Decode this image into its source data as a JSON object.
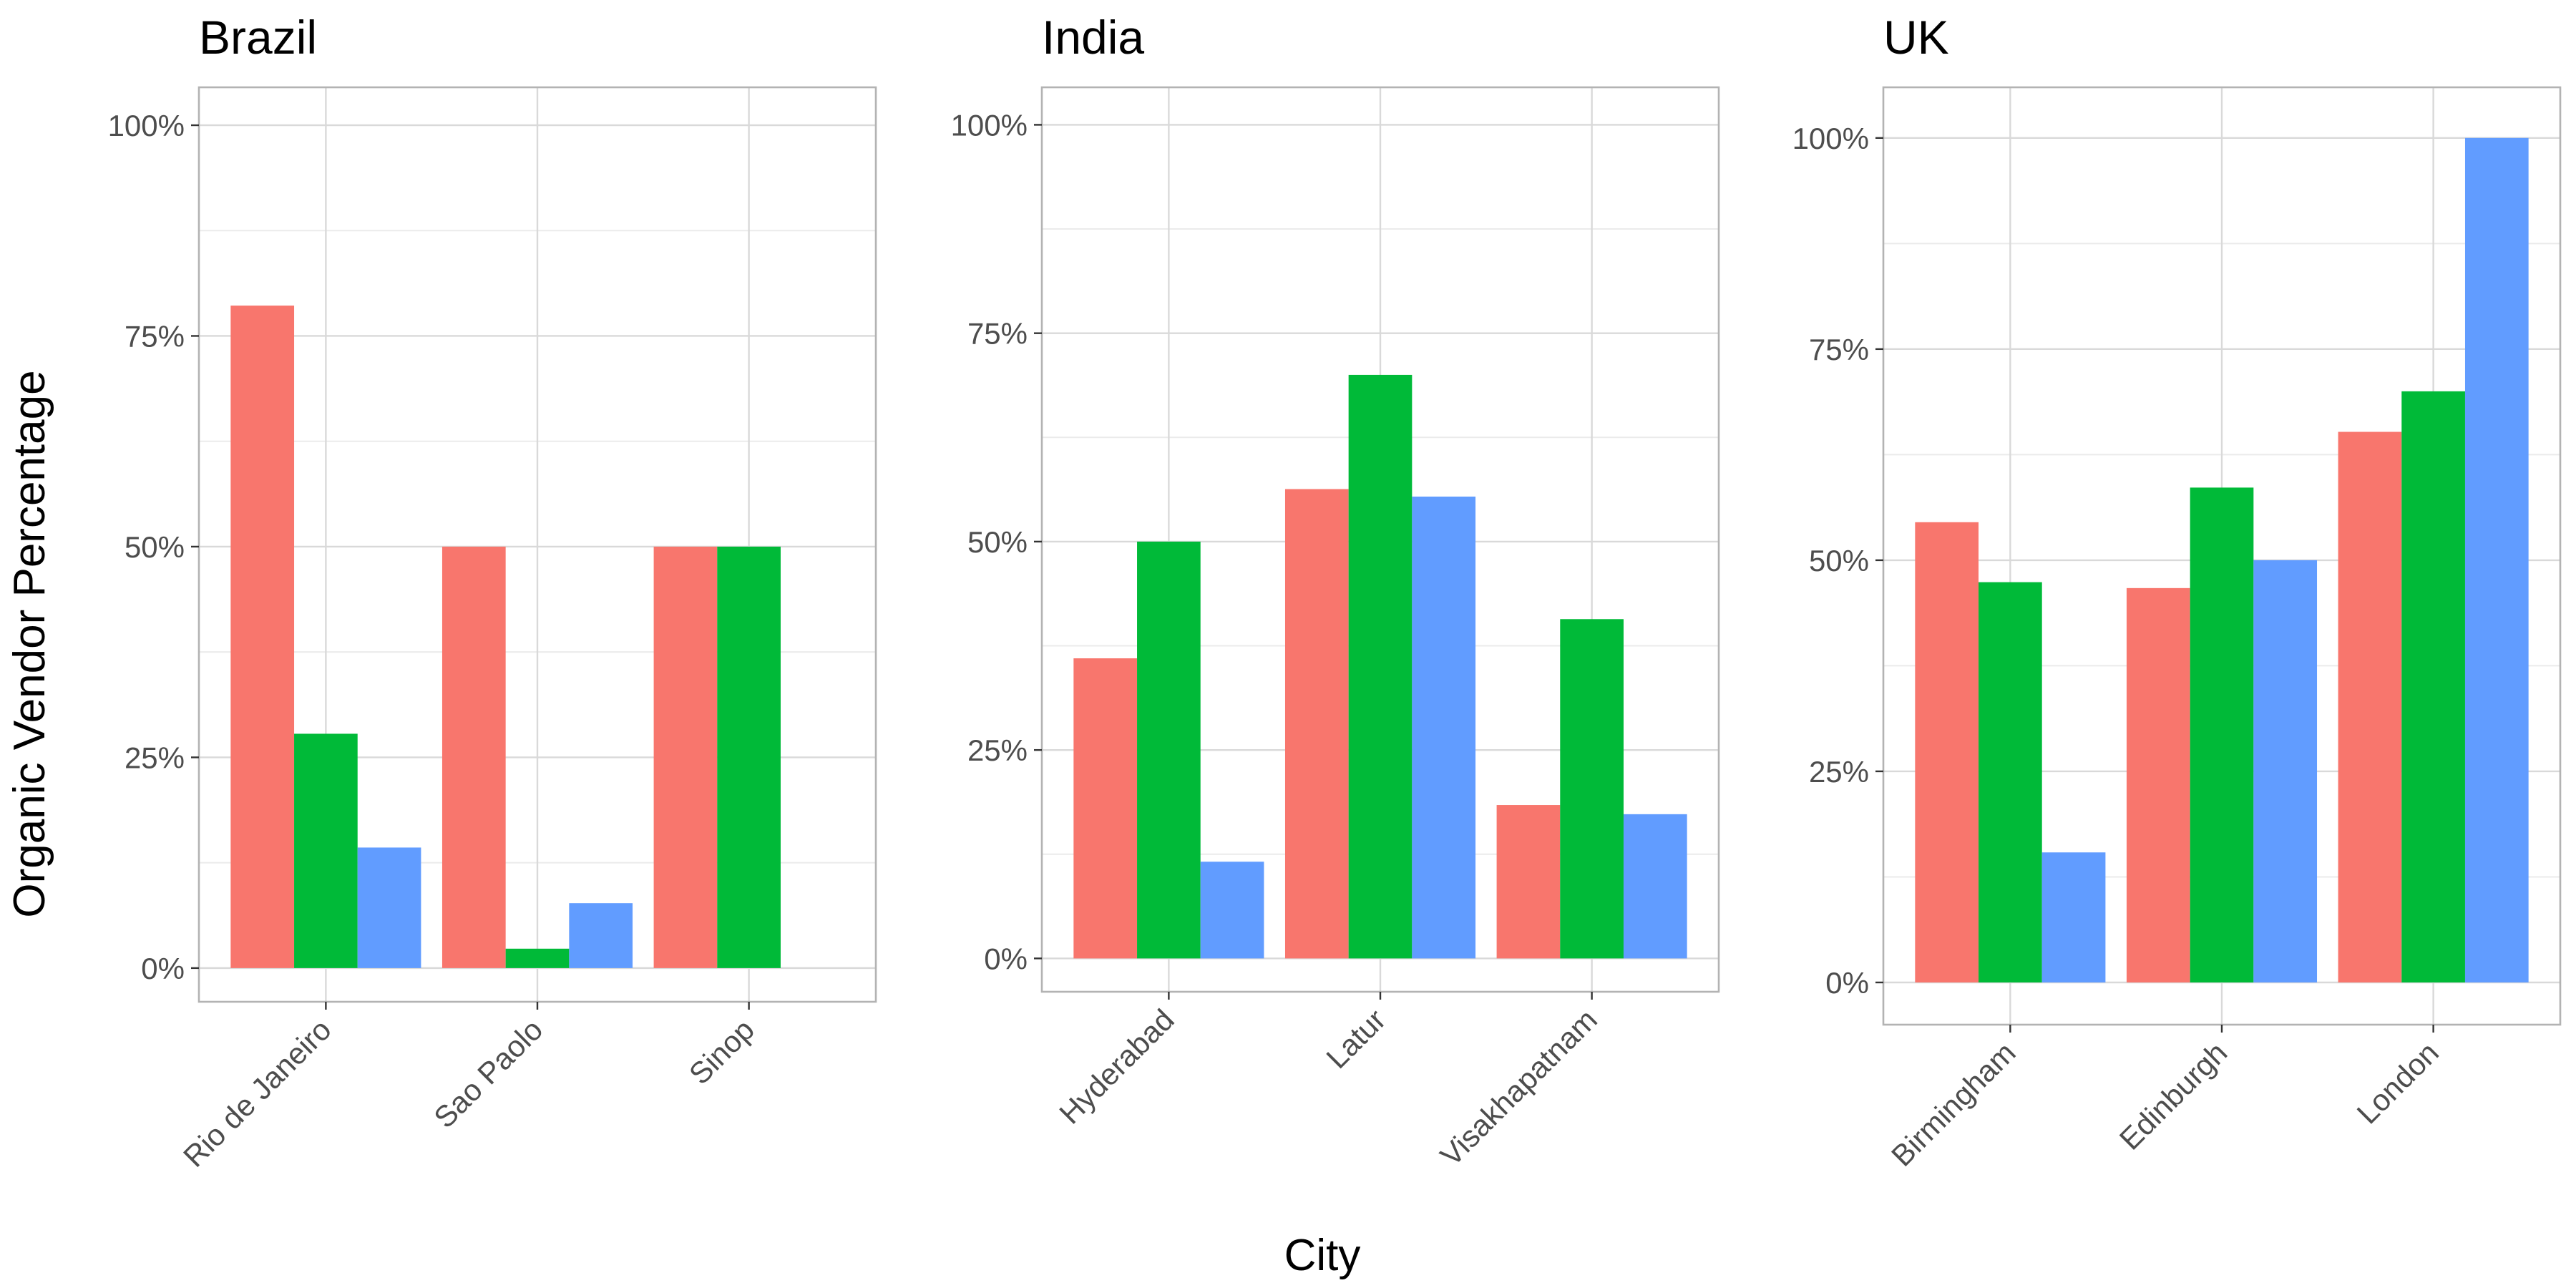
{
  "chart_data": {
    "type": "bar",
    "xlabel": "City",
    "ylabel": "Organic Vendor Percentage",
    "y_format": "percent",
    "grid": true,
    "legend": "none",
    "colors": [
      "#F8766D",
      "#00BA38",
      "#619CFF"
    ],
    "panels": [
      {
        "title": "Brazil",
        "ylim": [
          -0.04,
          1.045
        ],
        "categories": [
          "Rio de Janeiro",
          "Sao Paolo",
          "Sinop"
        ],
        "series": [
          {
            "values": [
              0.786,
              0.5,
              0.5
            ]
          },
          {
            "values": [
              0.278,
              0.023,
              0.5
            ]
          },
          {
            "values": [
              0.143,
              0.077,
              null
            ]
          }
        ]
      },
      {
        "title": "India",
        "ylim": [
          -0.04,
          1.045
        ],
        "categories": [
          "Hyderabad",
          "Latur",
          "Visakhapatnam"
        ],
        "series": [
          {
            "values": [
              0.36,
              0.563,
              0.184
            ]
          },
          {
            "values": [
              0.5,
              0.7,
              0.407
            ]
          },
          {
            "values": [
              0.116,
              0.554,
              0.173
            ]
          }
        ]
      },
      {
        "title": "UK",
        "ylim": [
          -0.05,
          1.06
        ],
        "categories": [
          "Birmingham",
          "Edinburgh",
          "London"
        ],
        "series": [
          {
            "values": [
              0.545,
              0.467,
              0.652
            ]
          },
          {
            "values": [
              0.474,
              0.586,
              0.7
            ]
          },
          {
            "values": [
              0.154,
              0.5,
              1.0
            ]
          }
        ]
      }
    ],
    "y_ticks": [
      0,
      0.25,
      0.5,
      0.75,
      1.0
    ],
    "y_tick_labels": [
      "0%",
      "25%",
      "50%",
      "75%",
      "100%"
    ]
  }
}
